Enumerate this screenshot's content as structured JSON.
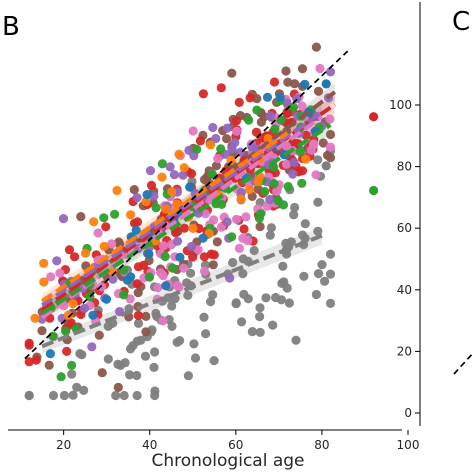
{
  "chart_data": [
    {
      "type": "scatter",
      "panel_label": "B",
      "title": "",
      "xlabel": "Chronological age",
      "ylabel": "",
      "xlim": [
        8,
        100
      ],
      "ylim": [
        -3,
        100
      ],
      "x_ticks": [
        "20",
        "40",
        "60",
        "80",
        "100"
      ],
      "grid": false,
      "legend": "none",
      "identity_line": {
        "from": [
          11,
          11
        ],
        "to": [
          86,
          86
        ],
        "color": "#000000",
        "style": "dashed"
      },
      "series": [
        {
          "color": "#7f7f7f",
          "fit": [
            [
              15,
              14
            ],
            [
              80,
              41
            ]
          ],
          "clouds": [
            [
              30,
              12,
              16,
              12,
              12,
              34
            ],
            [
              50,
              12,
              24,
              12,
              16,
              60
            ],
            [
              72,
              8,
              37,
              11,
              32,
              40
            ]
          ]
        },
        {
          "color": "#8c564b",
          "fit": [
            [
              15,
              22
            ],
            [
              83,
              76
            ]
          ],
          "clouds": [
            [
              24,
              6,
              25,
              8,
              12,
              25
            ],
            [
              42,
              8,
              42,
              12,
              22,
              35
            ],
            [
              60,
              7,
              57,
              9,
              32,
              45
            ],
            [
              73,
              5,
              67,
              8,
              50,
              45
            ]
          ]
        },
        {
          "color": "#d62728",
          "fit": [
            [
              15,
              23
            ],
            [
              83,
              73
            ]
          ],
          "clouds": [
            [
              24,
              6,
              26,
              8,
              12,
              24
            ],
            [
              42,
              8,
              42,
              11,
              22,
              34
            ],
            [
              60,
              7,
              56,
              9,
              32,
              42
            ],
            [
              73,
              5,
              66,
              8,
              50,
              38
            ]
          ]
        },
        {
          "color": "#e377c2",
          "fit": [
            [
              15,
              21
            ],
            [
              80,
              70
            ]
          ],
          "clouds": [
            [
              28,
              6,
              24,
              8,
              12,
              16
            ],
            [
              45,
              7,
              36,
              8,
              22,
              22
            ],
            [
              60,
              7,
              54,
              9,
              32,
              30
            ],
            [
              73,
              5,
              63,
              8,
              50,
              26
            ]
          ]
        },
        {
          "color": "#9467bd",
          "fit": [
            [
              15,
              24
            ],
            [
              80,
              71
            ]
          ],
          "clouds": [
            [
              24,
              6,
              27,
              7,
              12,
              14
            ],
            [
              42,
              8,
              44,
              9,
              22,
              18
            ],
            [
              60,
              7,
              58,
              8,
              32,
              22
            ],
            [
              73,
              5,
              67,
              7,
              50,
              16
            ]
          ]
        },
        {
          "color": "#2ca02c",
          "fit": [
            [
              15,
              22
            ],
            [
              82,
              68
            ]
          ],
          "clouds": [
            [
              24,
              6,
              26,
              8,
              12,
              12
            ],
            [
              42,
              8,
              42,
              9,
              22,
              14
            ],
            [
              60,
              7,
              56,
              8,
              32,
              16
            ],
            [
              73,
              5,
              65,
              7,
              50,
              12
            ]
          ]
        },
        {
          "color": "#ff7f0e",
          "fit": [
            [
              15,
              25
            ],
            [
              72,
              66
            ]
          ],
          "clouds": [
            [
              24,
              6,
              28,
              7,
              12,
              9
            ],
            [
              42,
              8,
              44,
              8,
              22,
              12
            ],
            [
              60,
              7,
              57,
              8,
              32,
              12
            ]
          ]
        },
        {
          "color": "#1f77b4",
          "fit": [],
          "clouds": [
            [
              30,
              8,
              30,
              9,
              12,
              8
            ],
            [
              50,
              8,
              48,
              9,
              22,
              9
            ],
            [
              70,
              6,
              64,
              8,
              40,
              8
            ]
          ]
        }
      ],
      "outliers": [
        {
          "x": 92,
          "y": 52,
          "color": "#2ca02c"
        },
        {
          "x": 92,
          "y": 70,
          "color": "#d62728"
        },
        {
          "x": 81,
          "y": 58,
          "color": "#7f7f7f"
        },
        {
          "x": 81,
          "y": 78,
          "color": "#1f77b4"
        }
      ]
    },
    {
      "type": "scatter",
      "panel_label": "C",
      "title": "",
      "xlabel": "",
      "ylabel": "",
      "ylim": [
        -3,
        100
      ],
      "y_ticks": [
        "0",
        "20",
        "40",
        "60",
        "80",
        "100"
      ],
      "grid": false,
      "legend": "none"
    }
  ]
}
